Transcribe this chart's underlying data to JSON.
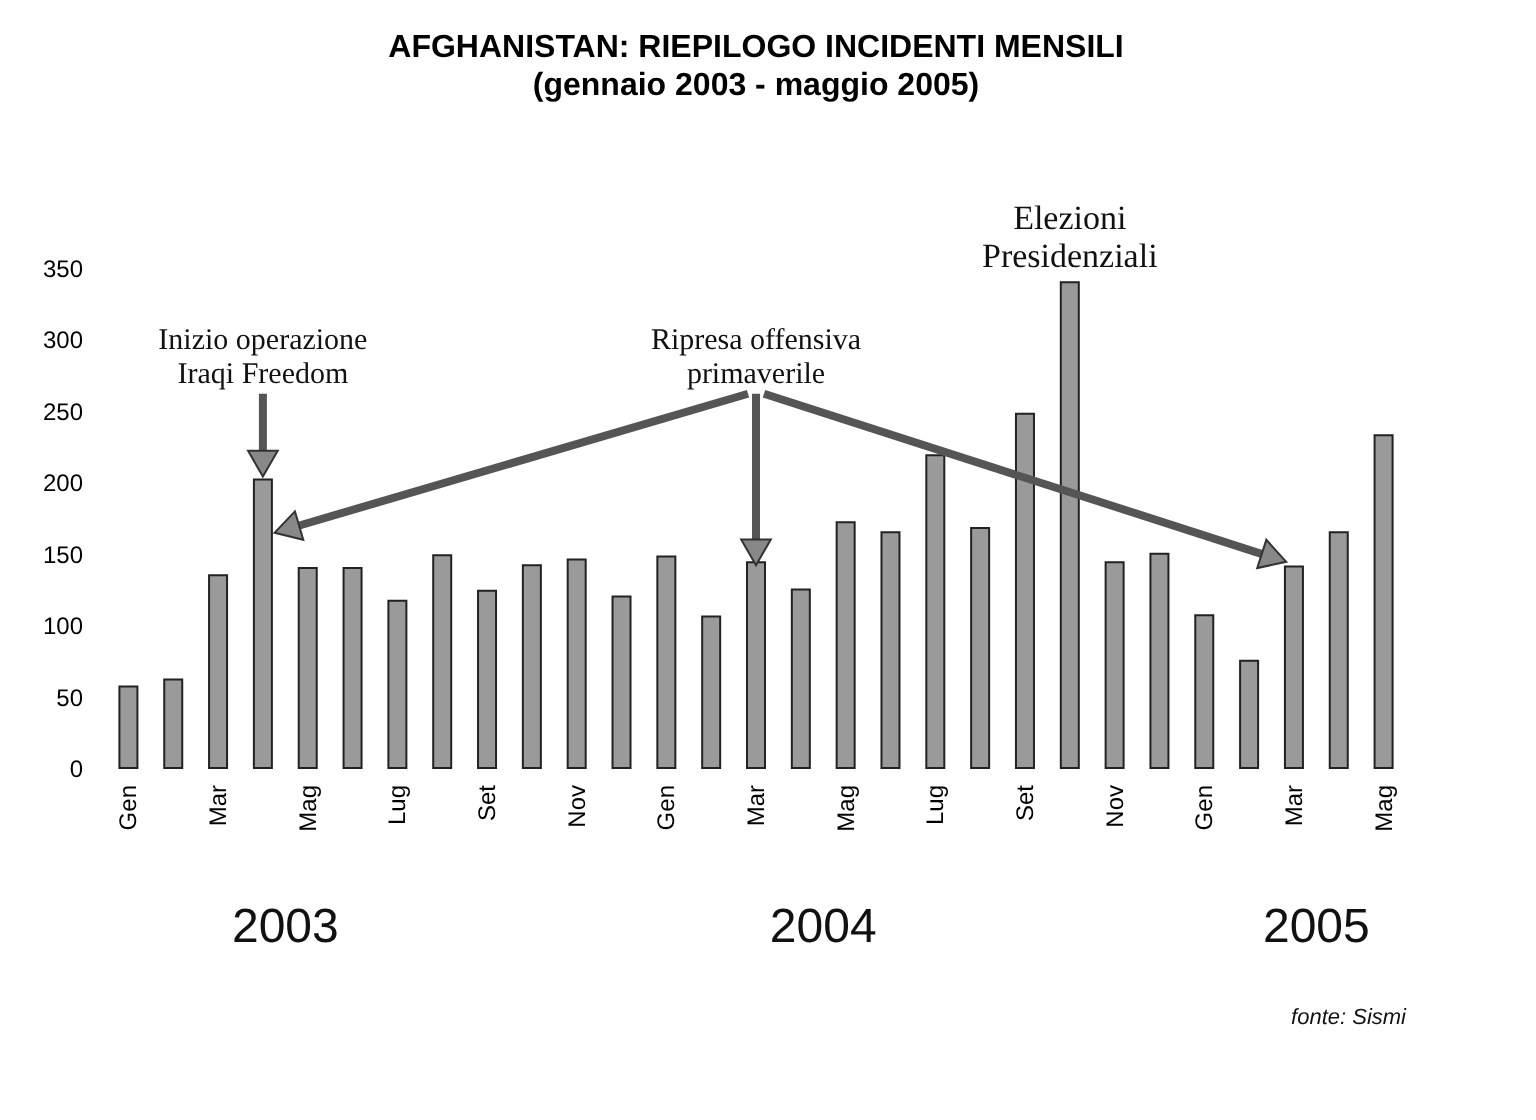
{
  "chart_data": {
    "type": "bar",
    "title": "AFGHANISTAN: RIEPILOGO INCIDENTI MENSILI",
    "subtitle": "(gennaio 2003 - maggio 2005)",
    "categories": [
      "Gen",
      null,
      "Mar",
      null,
      "Mag",
      null,
      "Lug",
      null,
      "Set",
      null,
      "Nov",
      null,
      "Gen",
      null,
      "Mar",
      null,
      "Mag",
      null,
      "Lug",
      null,
      "Set",
      null,
      "Nov",
      null,
      "Gen",
      null,
      "Mar",
      null,
      "Mag"
    ],
    "values": [
      57,
      62,
      135,
      202,
      140,
      140,
      117,
      149,
      124,
      142,
      146,
      120,
      148,
      106,
      144,
      125,
      172,
      165,
      219,
      168,
      248,
      340,
      144,
      150,
      107,
      75,
      141,
      165,
      233
    ],
    "color": "#9a9a9a",
    "ylim": [
      0,
      350
    ],
    "yticks": [
      0,
      50,
      100,
      150,
      200,
      250,
      300,
      350
    ],
    "annotations": [
      {
        "text": "Inizio operazione\nIraqi Freedom",
        "y": 202
      },
      {
        "text": "Ripresa offensiva\nprimaverile",
        "y": 144
      },
      "Elezioni\nPresidenziali",
      "2003",
      "2004",
      "2005",
      "fonte: Sismi"
    ]
  }
}
